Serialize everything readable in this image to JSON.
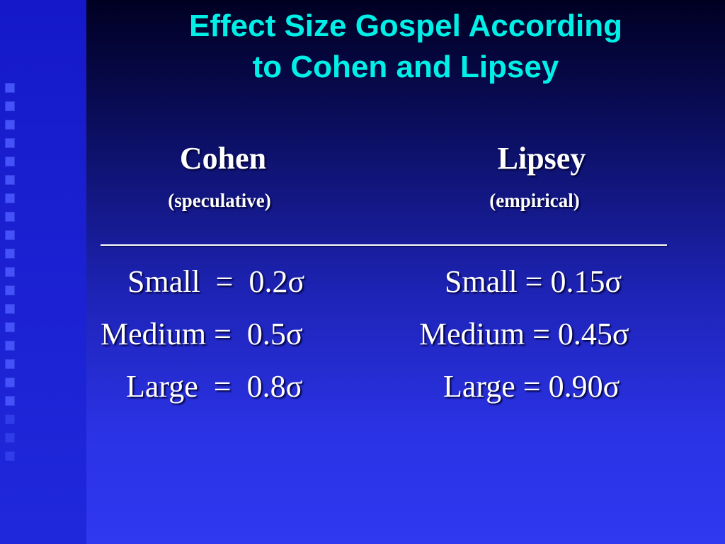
{
  "title_line1": "Effect Size Gospel According",
  "title_line2": "to Cohen and Lipsey",
  "cohen": {
    "heading": "Cohen",
    "subheading": "(speculative)",
    "rows": [
      "Small  =  0.2σ",
      "Medium =  0.5σ",
      "Large  =  0.8σ"
    ]
  },
  "lipsey": {
    "heading": "Lipsey",
    "subheading": "(empirical)",
    "rows": [
      "Small = 0.15σ",
      "Medium = 0.45σ",
      "Large = 0.90σ"
    ]
  },
  "colors": {
    "title": "#00f0e8",
    "text": "#ffffff",
    "background": "#2b33e6"
  }
}
